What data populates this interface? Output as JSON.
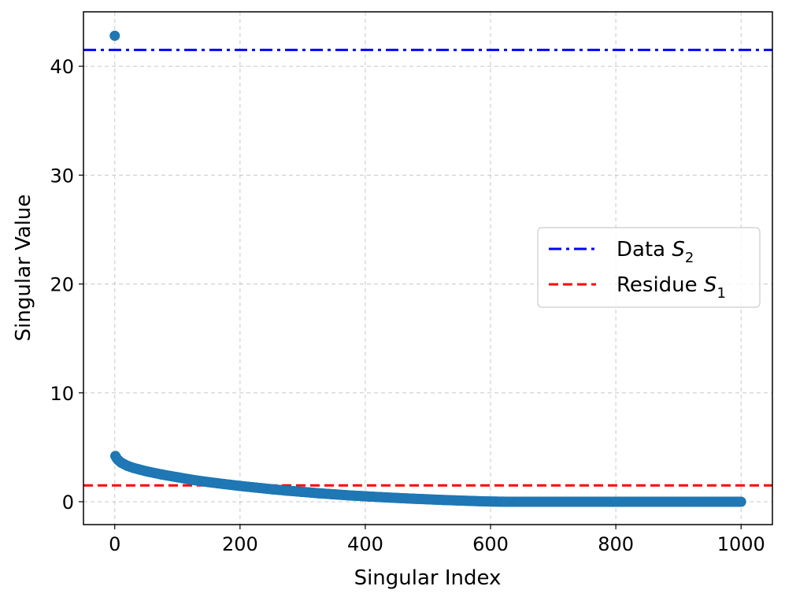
{
  "chart_data": {
    "type": "scatter",
    "title": "",
    "xlabel": "Singular Index",
    "ylabel": "Singular Value",
    "xlim": [
      -50,
      1050
    ],
    "ylim": [
      -2.1,
      45
    ],
    "xticks": [
      0,
      200,
      400,
      600,
      800,
      1000
    ],
    "yticks": [
      0,
      10,
      20,
      30,
      40
    ],
    "grid": true,
    "legend_position": "center-right",
    "series": [
      {
        "type": "scatter",
        "color": "#1f77b4",
        "points": [
          [
            0,
            42.8
          ],
          [
            1,
            4.2
          ],
          [
            3,
            4.0
          ],
          [
            5,
            3.85
          ],
          [
            10,
            3.6
          ],
          [
            20,
            3.3
          ],
          [
            30,
            3.1
          ],
          [
            40,
            2.95
          ],
          [
            50,
            2.8
          ],
          [
            75,
            2.5
          ],
          [
            100,
            2.25
          ],
          [
            125,
            2.0
          ],
          [
            150,
            1.8
          ],
          [
            175,
            1.62
          ],
          [
            200,
            1.45
          ],
          [
            225,
            1.3
          ],
          [
            250,
            1.15
          ],
          [
            275,
            1.02
          ],
          [
            300,
            0.9
          ],
          [
            325,
            0.78
          ],
          [
            350,
            0.68
          ],
          [
            375,
            0.58
          ],
          [
            400,
            0.5
          ],
          [
            425,
            0.42
          ],
          [
            450,
            0.35
          ],
          [
            475,
            0.28
          ],
          [
            500,
            0.22
          ],
          [
            525,
            0.16
          ],
          [
            550,
            0.11
          ],
          [
            575,
            0.06
          ],
          [
            600,
            0.02
          ],
          [
            625,
            0.0
          ],
          [
            650,
            0.0
          ],
          [
            700,
            0.0
          ],
          [
            750,
            0.0
          ],
          [
            800,
            0.0
          ],
          [
            850,
            0.0
          ],
          [
            900,
            0.0
          ],
          [
            950,
            0.0
          ],
          [
            1000,
            0.0
          ]
        ]
      }
    ],
    "reference_lines": [
      {
        "name": "Data",
        "subscript": "2",
        "variable": "S",
        "y": 41.5,
        "color": "#0000ff",
        "style": "dash-dot"
      },
      {
        "name": "Residue",
        "subscript": "1",
        "variable": "S",
        "y": 1.5,
        "color": "#ff0000",
        "style": "dashed"
      }
    ]
  }
}
